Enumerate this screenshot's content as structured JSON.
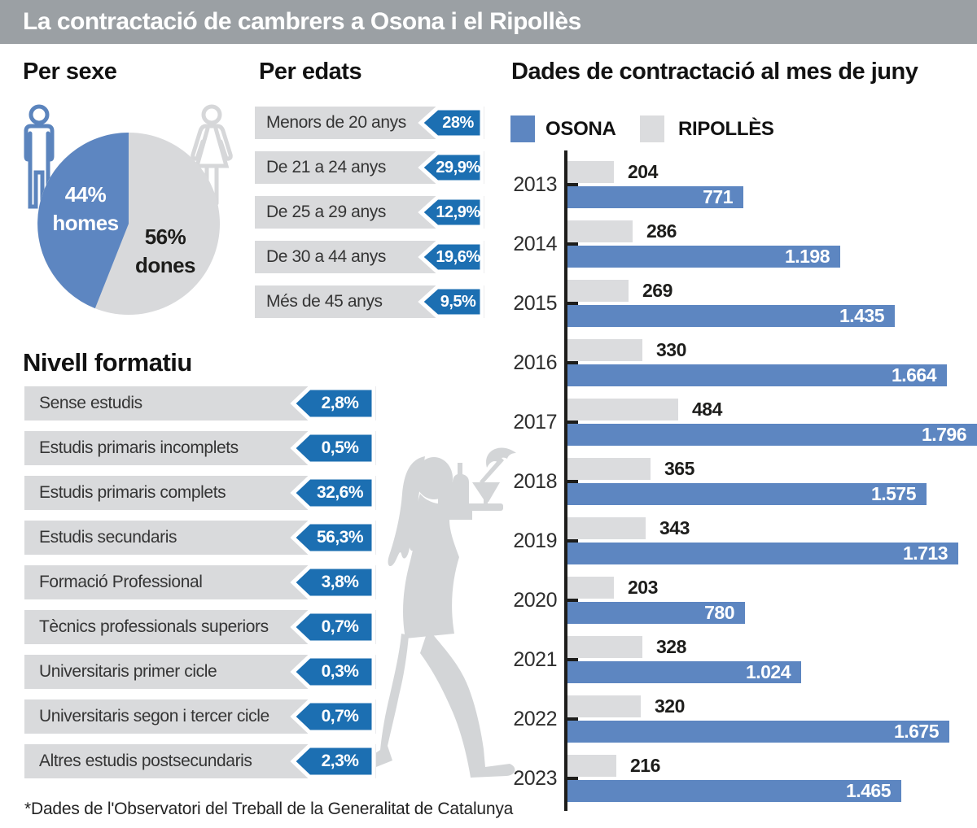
{
  "title_bar": {
    "text": "La contractació de cambrers a Osona i el Ripollès"
  },
  "footnote": "*Dades de l'Observatori del Treball de la Generalitat de Catalunya",
  "colors": {
    "title_bar_gray": "#9ba0a4",
    "accent_blue": "#1c6fb2",
    "soft_blue": "#5d86c1",
    "row_gray": "#d9dadc",
    "bar_gray": "#dbdcde",
    "silhouette_gray": "#d3d5d7",
    "text_dark": "#1d1d1b"
  },
  "sections": {
    "per_sexe": {
      "heading": "Per sexe",
      "pie": {
        "slices": [
          {
            "pct": "44%",
            "name": "homes",
            "value": 44,
            "color": "#5d86c1",
            "text_color": "#ffffff"
          },
          {
            "pct": "56%",
            "name": "dones",
            "value": 56,
            "color": "#d8d9db",
            "text_color": "#1d1d1b"
          }
        ]
      },
      "icons": [
        "male-figure",
        "female-figure"
      ]
    },
    "per_edats": {
      "heading": "Per edats",
      "rows": [
        {
          "label": "Menors de 20 anys",
          "value": "28%"
        },
        {
          "label": "De 21 a 24 anys",
          "value": "29,9%"
        },
        {
          "label": "De 25 a 29 anys",
          "value": "12,9%"
        },
        {
          "label": "De 30 a 44 anys",
          "value": "19,6%"
        },
        {
          "label": "Més de 45 anys",
          "value": "9,5%"
        }
      ]
    },
    "nivell_formatiu": {
      "heading": "Nivell formatiu",
      "rows": [
        {
          "label": "Sense estudis",
          "value": "2,8%"
        },
        {
          "label": "Estudis primaris incomplets",
          "value": "0,5%"
        },
        {
          "label": "Estudis primaris complets",
          "value": "32,6%"
        },
        {
          "label": "Estudis secundaris",
          "value": "56,3%"
        },
        {
          "label": "Formació Professional",
          "value": "3,8%"
        },
        {
          "label": "Tècnics professionals superiors",
          "value": "0,7%"
        },
        {
          "label": "Universitaris primer cicle",
          "value": "0,3%"
        },
        {
          "label": "Universitaris segon i tercer cicle",
          "value": "0,7%"
        },
        {
          "label": "Altres estudis postsecundaris",
          "value": "2,3%"
        }
      ]
    }
  },
  "chart_data": {
    "type": "bar",
    "orientation": "horizontal",
    "title": "Dades de contractació al mes de juny",
    "legend": [
      {
        "name": "OSONA",
        "color": "#5d86c1"
      },
      {
        "name": "RIPOLLÈS",
        "color": "#dbdcde"
      }
    ],
    "legend_position": "top",
    "grid": false,
    "xlim": [
      0,
      1850
    ],
    "categories": [
      "2013",
      "2014",
      "2015",
      "2016",
      "2017",
      "2018",
      "2019",
      "2020",
      "2021",
      "2022",
      "2023"
    ],
    "series": [
      {
        "name": "OSONA",
        "values": [
          771,
          1198,
          1435,
          1664,
          1796,
          1575,
          1713,
          780,
          1024,
          1675,
          1465
        ],
        "display": [
          "771",
          "1.198",
          "1.435",
          "1.664",
          "1.796",
          "1.575",
          "1.713",
          "780",
          "1.024",
          "1.675",
          "1.465"
        ]
      },
      {
        "name": "RIPOLLÈS",
        "values": [
          204,
          286,
          269,
          330,
          484,
          365,
          343,
          203,
          328,
          320,
          216
        ],
        "display": [
          "204",
          "286",
          "269",
          "330",
          "484",
          "365",
          "343",
          "203",
          "328",
          "320",
          "216"
        ]
      }
    ]
  }
}
